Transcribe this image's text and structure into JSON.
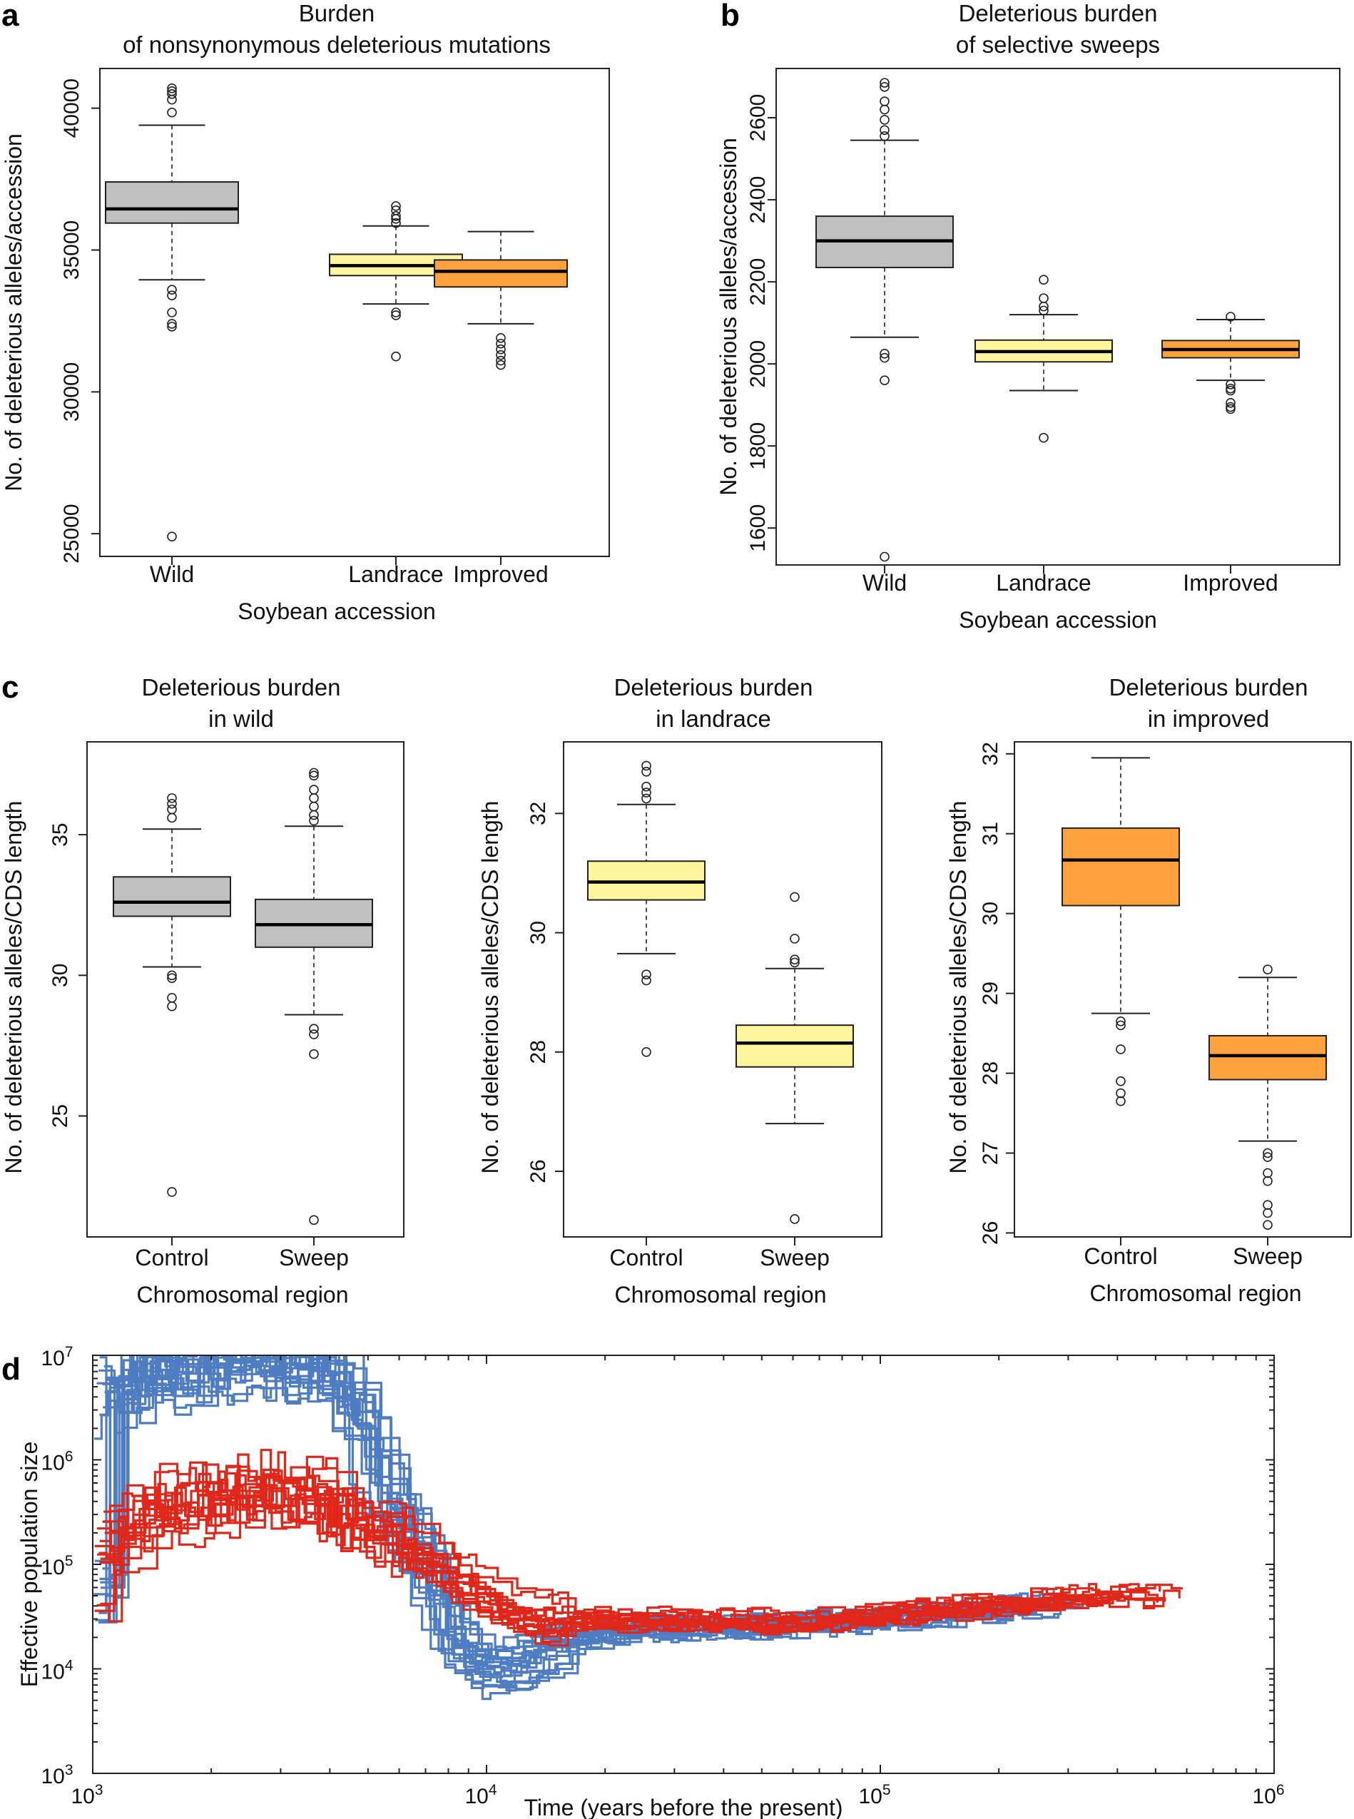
{
  "panels": [
    {
      "id": "a",
      "label": "a",
      "title_lines": [
        "Burden",
        "of nonsynonymous deleterious mutations"
      ],
      "ylabel": "No. of deleterious alleles/accession",
      "xlabel": "Soybean accession",
      "ylim": [
        24200,
        41400
      ],
      "yticks": [
        25000,
        30000,
        35000,
        40000
      ],
      "categories": [
        "Wild",
        "Landrace",
        "Improved"
      ],
      "boxes": [
        {
          "name": "Wild",
          "color": "#c0c0c0",
          "whislo": 33950,
          "q1": 35950,
          "med": 36450,
          "q3": 37400,
          "whishi": 39400,
          "outliers": [
            40700,
            40600,
            40500,
            40300,
            39850,
            33600,
            33400,
            32800,
            32400,
            32300,
            24900
          ]
        },
        {
          "name": "Landrace",
          "color": "#fff59d",
          "whislo": 33100,
          "q1": 34100,
          "med": 34450,
          "q3": 34850,
          "whishi": 35850,
          "outliers": [
            36550,
            36400,
            36200,
            36100,
            35950,
            32800,
            32700,
            31250
          ]
        },
        {
          "name": "Improved",
          "color": "#ffa13d",
          "whislo": 32400,
          "q1": 33700,
          "med": 34250,
          "q3": 34650,
          "whishi": 35650,
          "outliers": [
            31900,
            31700,
            31500,
            31300,
            31100,
            30950
          ]
        }
      ]
    },
    {
      "id": "b",
      "label": "b",
      "title_lines": [
        "Deleterious burden",
        "of selective sweeps"
      ],
      "ylabel": "No. of deleterious alleles/accession",
      "xlabel": "Soybean accession",
      "ylim": [
        1510,
        2720
      ],
      "yticks": [
        1600,
        1800,
        2000,
        2200,
        2400,
        2600
      ],
      "categories": [
        "Wild",
        "Landrace",
        "Improved"
      ],
      "boxes": [
        {
          "name": "Wild",
          "color": "#c0c0c0",
          "whislo": 2065,
          "q1": 2235,
          "med": 2300,
          "q3": 2360,
          "whishi": 2545,
          "outliers": [
            2685,
            2675,
            2640,
            2620,
            2595,
            2570,
            2555,
            2025,
            2015,
            1960,
            1530
          ]
        },
        {
          "name": "Landrace",
          "color": "#fff59d",
          "whislo": 1935,
          "q1": 2005,
          "med": 2030,
          "q3": 2058,
          "whishi": 2120,
          "outliers": [
            2205,
            2160,
            2140,
            2130,
            1820
          ]
        },
        {
          "name": "Improved",
          "color": "#ffa13d",
          "whislo": 1960,
          "q1": 2015,
          "med": 2035,
          "q3": 2057,
          "whishi": 2108,
          "outliers": [
            2115,
            1950,
            1940,
            1935,
            1905,
            1895,
            1890
          ]
        }
      ]
    },
    {
      "id": "c1",
      "label": "c",
      "title_lines": [
        "Deleterious burden",
        "in wild"
      ],
      "ylabel": "No. of deleterious alleles/CDS length",
      "xlabel": "Chromosomal region",
      "ylim": [
        20.7,
        38.3
      ],
      "yticks": [
        25,
        30,
        35
      ],
      "categories": [
        "Control",
        "Sweep"
      ],
      "boxes": [
        {
          "name": "Control",
          "color": "#c0c0c0",
          "whislo": 30.3,
          "q1": 32.1,
          "med": 32.6,
          "q3": 33.5,
          "whishi": 35.2,
          "outliers": [
            36.3,
            36.1,
            35.9,
            35.6,
            30.0,
            29.9,
            29.2,
            28.9,
            22.3
          ]
        },
        {
          "name": "Sweep",
          "color": "#c0c0c0",
          "whislo": 28.6,
          "q1": 31.0,
          "med": 31.8,
          "q3": 32.7,
          "whishi": 35.3,
          "outliers": [
            37.2,
            37.1,
            36.6,
            36.3,
            36.0,
            35.7,
            35.5,
            28.1,
            27.9,
            27.2,
            21.3
          ]
        }
      ]
    },
    {
      "id": "c2",
      "label": "",
      "title_lines": [
        "Deleterious burden",
        "in landrace"
      ],
      "ylabel": "No. of deleterious alleles/CDS length",
      "xlabel": "Chromosomal region",
      "ylim": [
        24.9,
        33.2
      ],
      "yticks": [
        26,
        28,
        30,
        32
      ],
      "categories": [
        "Control",
        "Sweep"
      ],
      "boxes": [
        {
          "name": "Control",
          "color": "#fff59d",
          "whislo": 29.65,
          "q1": 30.55,
          "med": 30.85,
          "q3": 31.2,
          "whishi": 32.15,
          "outliers": [
            32.8,
            32.7,
            32.45,
            32.35,
            32.25,
            29.3,
            29.2,
            28.0
          ]
        },
        {
          "name": "Sweep",
          "color": "#fff59d",
          "whislo": 26.8,
          "q1": 27.75,
          "med": 28.15,
          "q3": 28.45,
          "whishi": 29.4,
          "outliers": [
            30.6,
            29.9,
            29.55,
            29.5,
            25.2
          ]
        }
      ]
    },
    {
      "id": "c3",
      "label": "",
      "title_lines": [
        "Deleterious burden",
        "in improved"
      ],
      "ylabel": "No. of deleterious alleles/CDS length",
      "xlabel": "Chromosomal region",
      "ylim": [
        25.95,
        32.15
      ],
      "yticks": [
        26,
        27,
        28,
        29,
        30,
        31,
        32
      ],
      "categories": [
        "Control",
        "Sweep"
      ],
      "boxes": [
        {
          "name": "Control",
          "color": "#ffa13d",
          "whislo": 28.75,
          "q1": 30.1,
          "med": 30.67,
          "q3": 31.07,
          "whishi": 31.95,
          "outliers": [
            28.65,
            28.6,
            28.3,
            27.9,
            27.75,
            27.65
          ]
        },
        {
          "name": "Sweep",
          "color": "#ffa13d",
          "whislo": 27.15,
          "q1": 27.92,
          "med": 28.22,
          "q3": 28.47,
          "whishi": 29.2,
          "outliers": [
            29.3,
            27.0,
            26.95,
            26.75,
            26.65,
            26.35,
            26.25,
            26.1
          ]
        }
      ]
    }
  ],
  "panel_d": {
    "label": "d",
    "type": "line",
    "scale": "log-log",
    "xlabel": "Time (years before the present)",
    "ylabel": "Effective population size",
    "xlim": [
      1000,
      1000000
    ],
    "ylim": [
      1000,
      10000000
    ],
    "xticks": [
      {
        "base": "10",
        "exp": "3"
      },
      {
        "base": "10",
        "exp": "4"
      },
      {
        "base": "10",
        "exp": "5"
      },
      {
        "base": "10",
        "exp": "6"
      }
    ],
    "yticks": [
      {
        "base": "10",
        "exp": "3"
      },
      {
        "base": "10",
        "exp": "4"
      },
      {
        "base": "10",
        "exp": "5"
      },
      {
        "base": "10",
        "exp": "6"
      },
      {
        "base": "10",
        "exp": "7"
      }
    ],
    "series": [
      {
        "name": "group-blue",
        "color": "#4f7dc2",
        "count": 20,
        "template": [
          [
            1000,
            4500000
          ],
          [
            2000,
            9000000
          ],
          [
            3500,
            9000000
          ],
          [
            4500,
            3000000
          ],
          [
            5000,
            700000
          ],
          [
            6500,
            120000
          ],
          [
            8000,
            15000
          ],
          [
            10000,
            9000
          ],
          [
            14000,
            17000
          ],
          [
            20000,
            24000
          ],
          [
            50000,
            26000
          ],
          [
            120000,
            32000
          ],
          [
            250000,
            42000
          ],
          [
            450000,
            50000
          ]
        ]
      },
      {
        "name": "group-red",
        "color": "#e0271a",
        "count": 15,
        "template": [
          [
            1000,
            120000
          ],
          [
            1500,
            350000
          ],
          [
            2500,
            550000
          ],
          [
            4000,
            400000
          ],
          [
            6500,
            160000
          ],
          [
            10000,
            50000
          ],
          [
            14000,
            30000
          ],
          [
            25000,
            30000
          ],
          [
            60000,
            28000
          ],
          [
            150000,
            38000
          ],
          [
            350000,
            50000
          ],
          [
            600000,
            52000
          ]
        ]
      }
    ]
  }
}
